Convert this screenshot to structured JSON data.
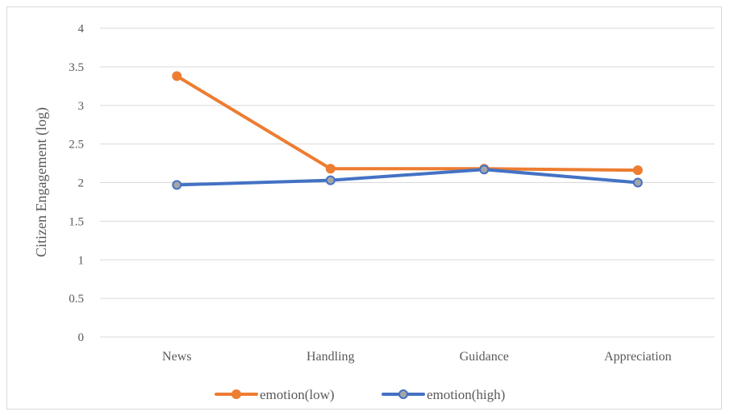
{
  "chart_data": {
    "type": "line",
    "title": "",
    "xlabel": "",
    "ylabel": "Citizen Engagement (log)",
    "ylim": [
      0,
      4
    ],
    "yticks": [
      "0",
      "0.5",
      "1",
      "1.5",
      "2",
      "2.5",
      "3",
      "3.5",
      "4"
    ],
    "categories": [
      "News",
      "Handling",
      "Guidance",
      "Appreciation"
    ],
    "grid": true,
    "legend_position": "bottom",
    "series": [
      {
        "name": "emotion(low)",
        "values": [
          3.38,
          2.18,
          2.18,
          2.16
        ],
        "color": "#ED7D31",
        "marker_fill": "#ED7D31"
      },
      {
        "name": "emotion(high)",
        "values": [
          1.97,
          2.03,
          2.17,
          2.0
        ],
        "color": "#4472C4",
        "marker_fill": "#A5A5A5"
      }
    ]
  }
}
